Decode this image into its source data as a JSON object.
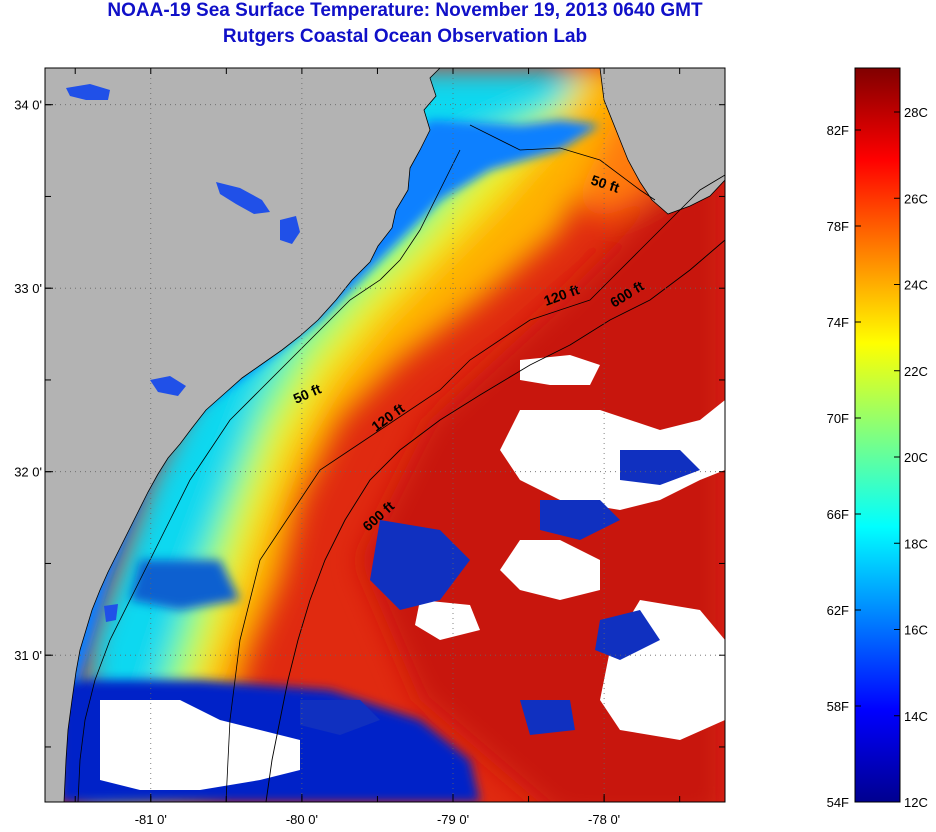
{
  "title": {
    "line1": "NOAA-19 Sea Surface Temperature:  November 19, 2013 0640 GMT",
    "line2": "Rutgers Coastal Ocean Observation Lab"
  },
  "map": {
    "lat_ticks": [
      {
        "value": 34,
        "label": "34 0'"
      },
      {
        "value": 33,
        "label": "33 0'"
      },
      {
        "value": 32,
        "label": "32 0'"
      },
      {
        "value": 31,
        "label": "31 0'"
      }
    ],
    "lon_ticks": [
      {
        "value": -81,
        "label": "-81 0'"
      },
      {
        "value": -80,
        "label": "-80 0'"
      },
      {
        "value": -79,
        "label": "-79 0'"
      },
      {
        "value": -78,
        "label": "-78 0'"
      }
    ],
    "lat_range": [
      30.2,
      34.2
    ],
    "lon_range": [
      -81.7,
      -77.2
    ],
    "contour_labels": [
      {
        "id": "50-upper",
        "text": "50 ft"
      },
      {
        "id": "120-upper",
        "text": "120 ft"
      },
      {
        "id": "600-upper",
        "text": "600 ft"
      },
      {
        "id": "50-lower",
        "text": "50 ft"
      },
      {
        "id": "120-lower",
        "text": "120 ft"
      },
      {
        "id": "600-lower",
        "text": "600 ft"
      }
    ],
    "colors": {
      "land": "#b3b3b3",
      "cloud": "#ffffff",
      "coast_line": "#000000"
    }
  },
  "colorbar": {
    "fahrenheit": [
      "82F",
      "78F",
      "74F",
      "70F",
      "66F",
      "62F",
      "58F",
      "54F"
    ],
    "celsius": [
      "28C",
      "26C",
      "24C",
      "22C",
      "20C",
      "18C",
      "16C",
      "14C",
      "12C"
    ],
    "colors": [
      "#00008f",
      "#0000ff",
      "#0080ff",
      "#00ffff",
      "#80ff80",
      "#ffff00",
      "#ff8000",
      "#ff0000",
      "#800000"
    ]
  }
}
